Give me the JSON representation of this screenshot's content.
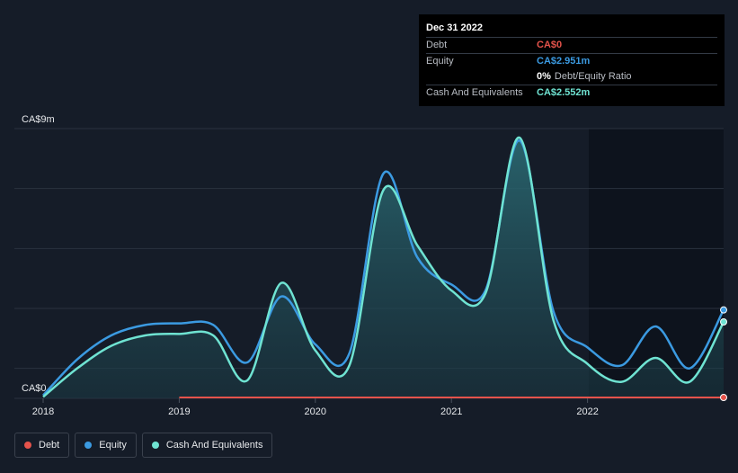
{
  "tooltip": {
    "date": "Dec 31 2022",
    "rows": [
      {
        "label": "Debt",
        "value": "CA$0",
        "color": "#e5534b"
      },
      {
        "label": "Equity",
        "value": "CA$2.951m",
        "color": "#3b9ae1"
      },
      {
        "label": "",
        "value": "0%",
        "extra": "Debt/Equity Ratio",
        "color": "#ffffff"
      },
      {
        "label": "Cash And Equivalents",
        "value": "CA$2.552m",
        "color": "#6fe3d2"
      }
    ]
  },
  "legend": [
    {
      "label": "Debt",
      "color": "#e5534b"
    },
    {
      "label": "Equity",
      "color": "#3b9ae1"
    },
    {
      "label": "Cash And Equivalents",
      "color": "#6fe3d2"
    }
  ],
  "chart_data": {
    "type": "line",
    "y_top_label": "CA$9m",
    "y_bottom_label": "CA$0",
    "ylim": [
      0,
      9
    ],
    "xlim": [
      2018.0,
      2023.0
    ],
    "x_ticks": [
      {
        "x": 2018,
        "label": "2018"
      },
      {
        "x": 2019,
        "label": "2019"
      },
      {
        "x": 2020,
        "label": "2020"
      },
      {
        "x": 2021,
        "label": "2021"
      },
      {
        "x": 2022,
        "label": "2022"
      }
    ],
    "grid": true,
    "legend_position": "bottom-left",
    "series": [
      {
        "name": "Debt",
        "color": "#e5534b",
        "x": [
          2019.0,
          2023.0
        ],
        "y": [
          0,
          0
        ]
      },
      {
        "name": "Equity",
        "color": "#3b9ae1",
        "x": [
          2018.0,
          2018.25,
          2018.5,
          2018.75,
          2019.0,
          2019.25,
          2019.5,
          2019.75,
          2020.0,
          2020.25,
          2020.5,
          2020.75,
          2021.0,
          2021.25,
          2021.5,
          2021.75,
          2022.0,
          2022.25,
          2022.5,
          2022.75,
          2023.0
        ],
        "y": [
          0.1,
          1.3,
          2.1,
          2.45,
          2.5,
          2.45,
          1.2,
          3.4,
          1.8,
          1.5,
          7.5,
          4.7,
          3.8,
          3.6,
          8.6,
          2.9,
          1.7,
          1.1,
          2.4,
          1.0,
          2.95
        ]
      },
      {
        "name": "Cash And Equivalents",
        "color": "#6fe3d2",
        "x": [
          2018.0,
          2018.25,
          2018.5,
          2018.75,
          2019.0,
          2019.25,
          2019.5,
          2019.75,
          2020.0,
          2020.25,
          2020.5,
          2020.75,
          2021.0,
          2021.25,
          2021.5,
          2021.75,
          2022.0,
          2022.25,
          2022.5,
          2022.75,
          2023.0
        ],
        "y": [
          0.05,
          1.0,
          1.75,
          2.1,
          2.15,
          2.1,
          0.6,
          3.85,
          1.6,
          1.1,
          6.95,
          5.1,
          3.6,
          3.5,
          8.7,
          2.6,
          1.15,
          0.55,
          1.35,
          0.55,
          2.55
        ]
      }
    ]
  }
}
